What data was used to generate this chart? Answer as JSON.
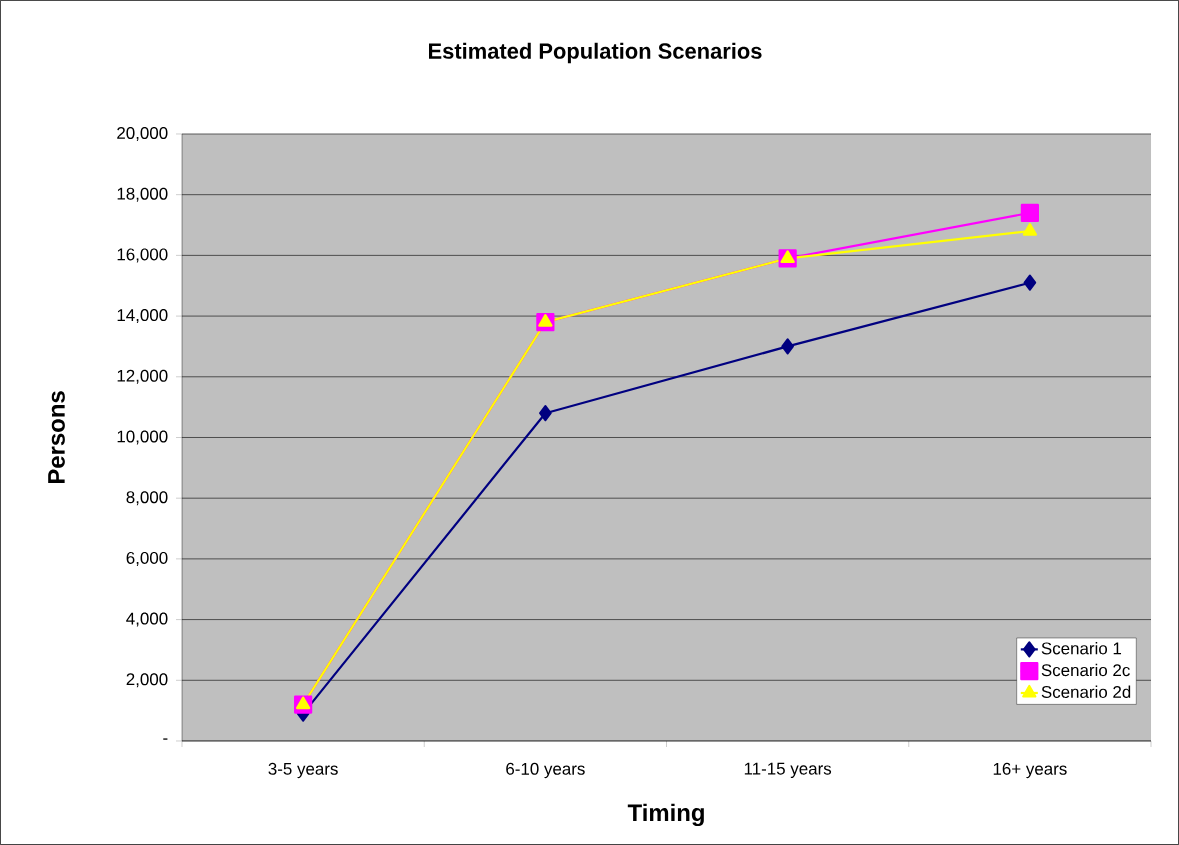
{
  "chart_data": {
    "type": "line",
    "title": "Estimated Population Scenarios",
    "xlabel": "Timing",
    "ylabel": "Persons",
    "categories": [
      "3-5 years",
      "6-10 years",
      "11-15 years",
      "16+ years"
    ],
    "series": [
      {
        "name": "Scenario 1",
        "color": "#000080",
        "marker": "diamond",
        "values": [
          900,
          10800,
          13000,
          15100
        ]
      },
      {
        "name": "Scenario 2c",
        "color": "#ff00ff",
        "marker": "square",
        "values": [
          1200,
          13800,
          15900,
          17400
        ]
      },
      {
        "name": "Scenario 2d",
        "color": "#ffff00",
        "marker": "triangle",
        "values": [
          1200,
          13800,
          15900,
          16800
        ]
      }
    ],
    "ylim": [
      0,
      20000
    ],
    "yticks": [
      {
        "value": 0,
        "label": "-"
      },
      {
        "value": 2000,
        "label": "2,000"
      },
      {
        "value": 4000,
        "label": "4,000"
      },
      {
        "value": 6000,
        "label": "6,000"
      },
      {
        "value": 8000,
        "label": "8,000"
      },
      {
        "value": 10000,
        "label": "10,000"
      },
      {
        "value": 12000,
        "label": "12,000"
      },
      {
        "value": 14000,
        "label": "14,000"
      },
      {
        "value": 16000,
        "label": "16,000"
      },
      {
        "value": 18000,
        "label": "18,000"
      },
      {
        "value": 20000,
        "label": "20,000"
      }
    ],
    "grid": "y",
    "legend": "bottom right",
    "line_style": "solid"
  }
}
